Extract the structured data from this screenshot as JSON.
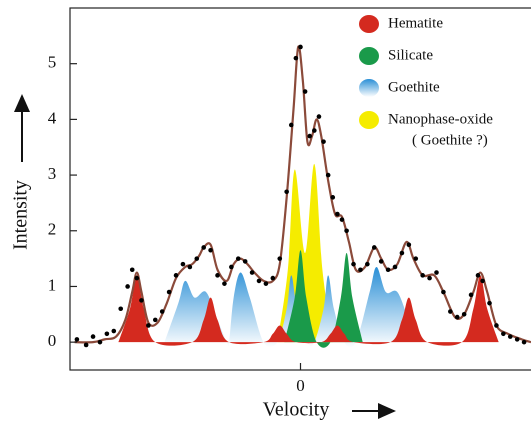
{
  "chart_data": {
    "type": "area",
    "xlabel": "Velocity",
    "ylabel": "Intensity",
    "annotation": "( Goethite ?)",
    "xlim": [
      -10,
      10
    ],
    "xticks": [
      0
    ],
    "ylim": [
      -0.5,
      6
    ],
    "yticks": [
      0,
      1,
      2,
      3,
      4,
      5
    ],
    "series": [
      {
        "name": "Hematite",
        "color": "#d42a1f",
        "kind": "area",
        "x": [
          -7.9,
          -7.4,
          -7.1,
          -6.8,
          -6.3,
          -4.7,
          -4.2,
          -3.9,
          -3.6,
          -3.1,
          -1.6,
          -1.2,
          -0.9,
          -0.6,
          -0.2,
          0.9,
          1.3,
          1.6,
          1.9,
          2.3,
          3.9,
          4.4,
          4.7,
          5.0,
          5.5,
          7.0,
          7.5,
          7.8,
          8.1,
          8.6
        ],
        "values": [
          0,
          0.6,
          1.2,
          0.6,
          0,
          0,
          0.4,
          0.8,
          0.4,
          0,
          0,
          0.15,
          0.3,
          0.15,
          0,
          0,
          0.15,
          0.3,
          0.15,
          0,
          0,
          0.4,
          0.8,
          0.4,
          0,
          0,
          0.6,
          1.2,
          0.6,
          0
        ]
      },
      {
        "name": "Silicate",
        "color": "#1a9a4a",
        "kind": "area",
        "x": [
          -0.7,
          -0.25,
          0,
          0.25,
          0.7,
          1.3,
          1.75,
          2.0,
          2.25,
          2.7
        ],
        "values": [
          0,
          0.8,
          1.65,
          0.8,
          0,
          0,
          0.8,
          1.6,
          0.8,
          0
        ]
      },
      {
        "name": "Goethite",
        "color": "#2a8fd6",
        "kind": "area",
        "x": [
          -5.9,
          -5.3,
          -5.0,
          -4.6,
          -4.1,
          -3.6,
          -3.2,
          -3.1,
          -2.9,
          -2.6,
          -2.2,
          -1.6,
          -1.0,
          -0.6,
          -0.4,
          -0.15,
          0.3,
          0.6,
          1.0,
          1.2,
          1.45,
          1.9,
          2.4,
          3.0,
          3.3,
          3.7,
          4.2,
          4.7,
          5.2
        ],
        "values": [
          0,
          0.7,
          1.1,
          0.8,
          0.9,
          0.4,
          0,
          0,
          0.8,
          1.25,
          0.8,
          0,
          0,
          0.6,
          1.2,
          0.6,
          0,
          0,
          0.6,
          1.2,
          0.6,
          0,
          0,
          0.9,
          1.35,
          0.9,
          0.9,
          0.4,
          0
        ]
      },
      {
        "name": "Nanophase-oxide",
        "color": "#f5ec00",
        "kind": "area",
        "x": [
          -1.0,
          -0.55,
          -0.25,
          0.2,
          0.6,
          0.95,
          1.4
        ],
        "values": [
          0,
          1.3,
          3.1,
          1.6,
          3.2,
          1.3,
          0
        ]
      },
      {
        "color": "#8b4a3a",
        "kind": "line",
        "x": [
          -9.8,
          -9,
          -8.5,
          -8,
          -7.6,
          -7.3,
          -7.1,
          -6.9,
          -6.6,
          -6.2,
          -5.8,
          -5.4,
          -5.0,
          -4.7,
          -4.4,
          -4.2,
          -3.9,
          -3.6,
          -3.2,
          -2.9,
          -2.6,
          -2.3,
          -2.0,
          -1.6,
          -1.2,
          -0.9,
          -0.6,
          -0.3,
          -0.1,
          0.1,
          0.3,
          0.5,
          0.7,
          0.9,
          1.2,
          1.5,
          1.8,
          2.1,
          2.4,
          2.8,
          3.2,
          3.5,
          3.8,
          4.2,
          4.6,
          4.9,
          5.3,
          5.8,
          6.2,
          6.7,
          7.1,
          7.5,
          7.8,
          8.1,
          8.5,
          9.0,
          9.6,
          10
        ],
        "values": [
          0,
          0,
          0.05,
          0.1,
          0.4,
          0.9,
          1.25,
          0.9,
          0.35,
          0.35,
          0.7,
          1.15,
          1.35,
          1.4,
          1.55,
          1.7,
          1.75,
          1.3,
          1.1,
          1.4,
          1.5,
          1.4,
          1.25,
          1.1,
          1.1,
          1.4,
          2.6,
          4.2,
          5.3,
          4.7,
          3.6,
          3.7,
          4.0,
          3.7,
          2.9,
          2.3,
          2.25,
          1.8,
          1.3,
          1.35,
          1.7,
          1.5,
          1.3,
          1.4,
          1.8,
          1.5,
          1.2,
          1.2,
          0.9,
          0.45,
          0.5,
          0.9,
          1.25,
          0.9,
          0.3,
          0.15,
          0.05,
          0
        ]
      },
      {
        "color": "#000000",
        "kind": "scatter",
        "x": [
          -9.7,
          -9.3,
          -9.0,
          -8.7,
          -8.4,
          -8.1,
          -7.8,
          -7.5,
          -7.3,
          -7.1,
          -6.9,
          -6.6,
          -6.3,
          -6.0,
          -5.7,
          -5.4,
          -5.1,
          -4.8,
          -4.5,
          -4.2,
          -3.9,
          -3.6,
          -3.3,
          -3.0,
          -2.7,
          -2.4,
          -2.1,
          -1.8,
          -1.5,
          -1.2,
          -0.9,
          -0.6,
          -0.4,
          -0.2,
          0.0,
          0.2,
          0.4,
          0.6,
          0.8,
          1.0,
          1.2,
          1.4,
          1.6,
          1.8,
          2.0,
          2.3,
          2.6,
          2.9,
          3.2,
          3.5,
          3.8,
          4.1,
          4.4,
          4.7,
          5.0,
          5.3,
          5.6,
          5.9,
          6.2,
          6.5,
          6.8,
          7.1,
          7.4,
          7.7,
          7.9,
          8.2,
          8.5,
          8.8,
          9.1,
          9.4,
          9.7
        ],
        "values": [
          0.05,
          -0.05,
          0.1,
          0.0,
          0.15,
          0.2,
          0.6,
          1.0,
          1.3,
          1.15,
          0.75,
          0.3,
          0.4,
          0.55,
          0.9,
          1.2,
          1.4,
          1.35,
          1.5,
          1.7,
          1.65,
          1.2,
          1.05,
          1.35,
          1.5,
          1.45,
          1.25,
          1.1,
          1.05,
          1.15,
          1.5,
          2.7,
          3.9,
          5.1,
          5.3,
          4.5,
          3.7,
          3.8,
          4.05,
          3.6,
          3.0,
          2.6,
          2.3,
          2.2,
          2.0,
          1.4,
          1.3,
          1.4,
          1.7,
          1.45,
          1.3,
          1.35,
          1.6,
          1.75,
          1.5,
          1.2,
          1.15,
          1.25,
          0.9,
          0.55,
          0.45,
          0.5,
          0.85,
          1.2,
          1.1,
          0.7,
          0.3,
          0.15,
          0.1,
          0.05,
          0.0
        ]
      }
    ]
  }
}
